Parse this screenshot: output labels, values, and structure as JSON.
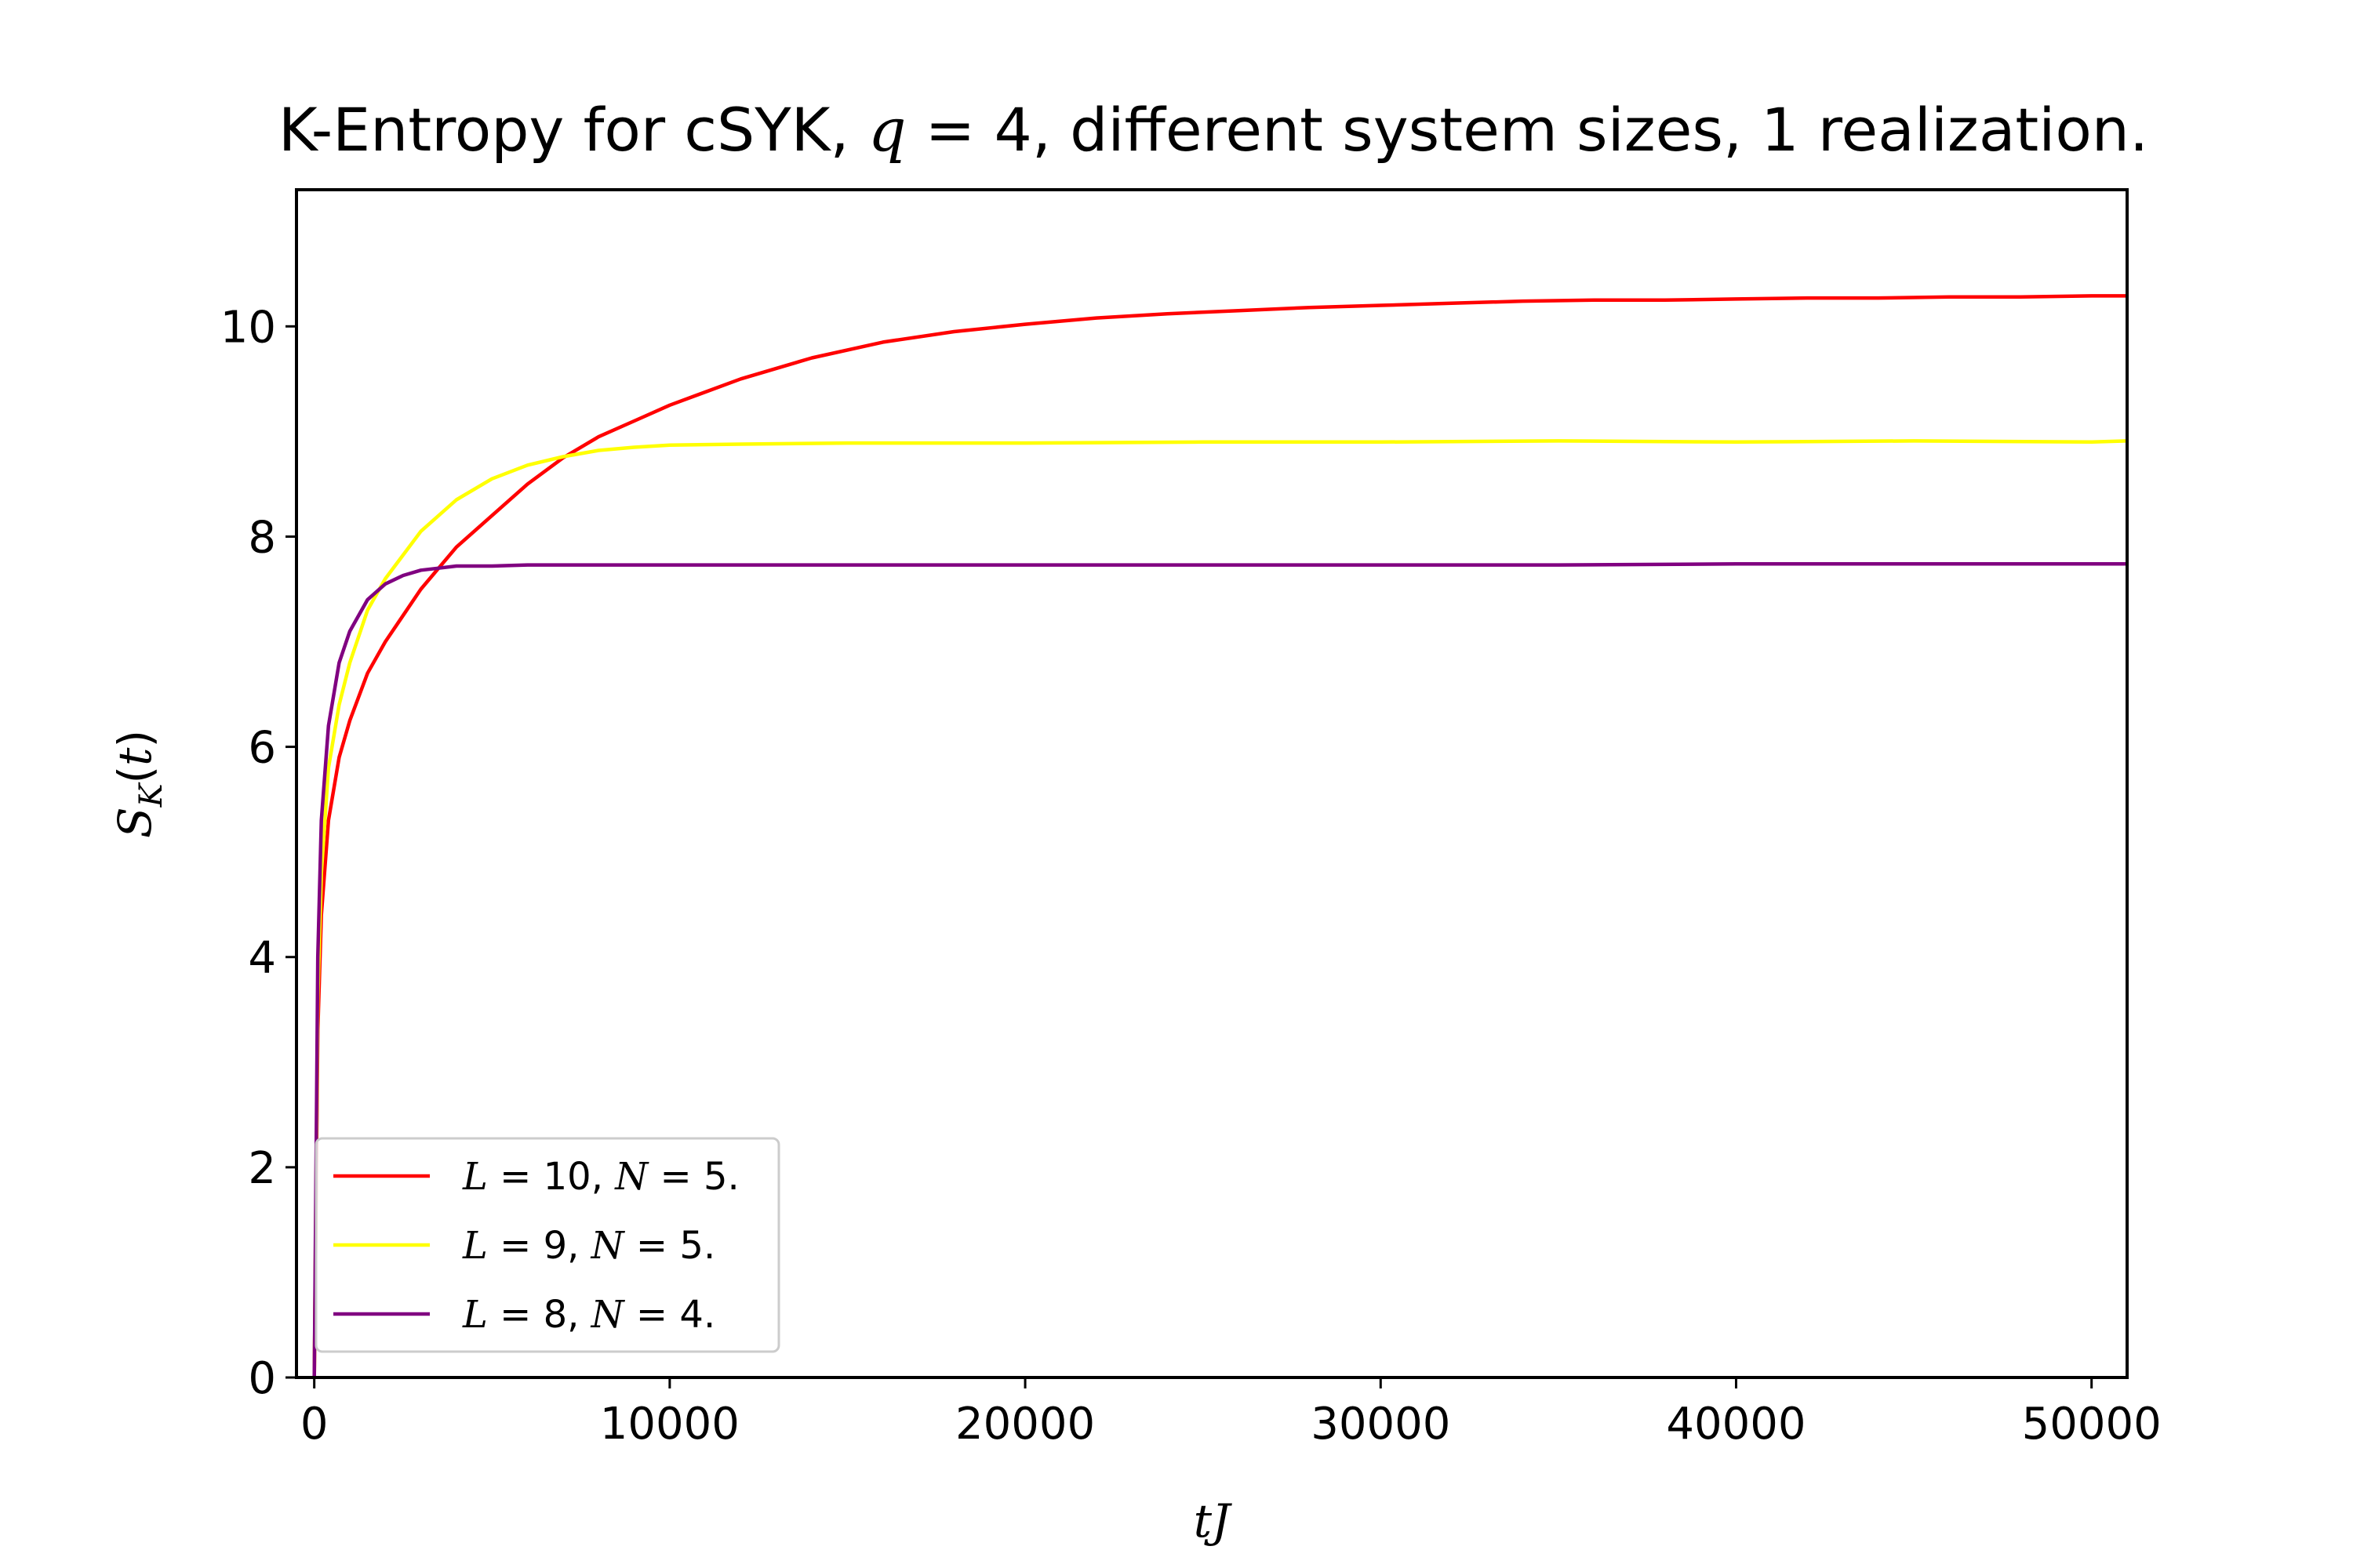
{
  "chart_data": {
    "type": "line",
    "title_parts": {
      "prefix": "K-Entropy for cSYK, ",
      "q_var": "q",
      "q_eq": " = 4",
      "suffix": ", different system sizes, 1 realization."
    },
    "xlabel": "tJ",
    "ylabel": "S_K(t)",
    "xlim": [
      -500,
      51000
    ],
    "ylim": [
      0,
      11.3
    ],
    "x_ticks": [
      0,
      10000,
      20000,
      30000,
      40000,
      50000
    ],
    "x_tick_labels": [
      "0",
      "10000",
      "20000",
      "30000",
      "40000",
      "50000"
    ],
    "y_ticks": [
      0,
      2,
      4,
      6,
      8,
      10
    ],
    "y_tick_labels": [
      "0",
      "2",
      "4",
      "6",
      "8",
      "10"
    ],
    "grid": false,
    "legend_position": "lower-left",
    "series": [
      {
        "name": "L = 10, N = 5.",
        "label_parts": {
          "L": "L",
          "Leq": " = 10, ",
          "N": "N",
          "Neq": " = 5."
        },
        "color": "#ff0000",
        "x": [
          0,
          100,
          200,
          400,
          700,
          1000,
          1500,
          2000,
          3000,
          4000,
          5000,
          6000,
          7000,
          8000,
          9000,
          10000,
          12000,
          14000,
          16000,
          18000,
          20000,
          22000,
          24000,
          26000,
          28000,
          30000,
          32000,
          34000,
          36000,
          38000,
          40000,
          42000,
          44000,
          46000,
          48000,
          50000,
          51000
        ],
        "y": [
          0,
          3.3,
          4.4,
          5.3,
          5.9,
          6.25,
          6.7,
          7.0,
          7.5,
          7.9,
          8.2,
          8.5,
          8.75,
          8.95,
          9.1,
          9.25,
          9.5,
          9.7,
          9.85,
          9.95,
          10.02,
          10.08,
          10.12,
          10.15,
          10.18,
          10.2,
          10.22,
          10.24,
          10.25,
          10.25,
          10.26,
          10.27,
          10.27,
          10.28,
          10.28,
          10.29,
          10.29
        ]
      },
      {
        "name": "L = 9, N = 5.",
        "label_parts": {
          "L": "L",
          "Leq": " = 9, ",
          "N": "N",
          "Neq": " = 5."
        },
        "color": "#ffff00",
        "x": [
          0,
          100,
          200,
          400,
          700,
          1000,
          1500,
          2000,
          3000,
          4000,
          5000,
          6000,
          7000,
          8000,
          9000,
          10000,
          12000,
          15000,
          20000,
          25000,
          30000,
          35000,
          40000,
          45000,
          50000,
          51000
        ],
        "y": [
          0,
          3.6,
          4.8,
          5.8,
          6.4,
          6.8,
          7.3,
          7.6,
          8.05,
          8.35,
          8.55,
          8.68,
          8.76,
          8.82,
          8.85,
          8.87,
          8.88,
          8.89,
          8.89,
          8.9,
          8.9,
          8.91,
          8.9,
          8.91,
          8.9,
          8.91
        ]
      },
      {
        "name": "L = 8, N = 4.",
        "label_parts": {
          "L": "L",
          "Leq": " = 8, ",
          "N": "N",
          "Neq": " = 4."
        },
        "color": "#800080",
        "x": [
          0,
          100,
          200,
          400,
          700,
          1000,
          1500,
          2000,
          2500,
          3000,
          3500,
          4000,
          5000,
          6000,
          8000,
          10000,
          15000,
          20000,
          25000,
          30000,
          35000,
          40000,
          45000,
          50000,
          51000
        ],
        "y": [
          0,
          4.0,
          5.3,
          6.2,
          6.8,
          7.1,
          7.4,
          7.55,
          7.63,
          7.68,
          7.7,
          7.72,
          7.72,
          7.73,
          7.73,
          7.73,
          7.73,
          7.73,
          7.73,
          7.73,
          7.73,
          7.74,
          7.74,
          7.74,
          7.74
        ]
      }
    ]
  }
}
